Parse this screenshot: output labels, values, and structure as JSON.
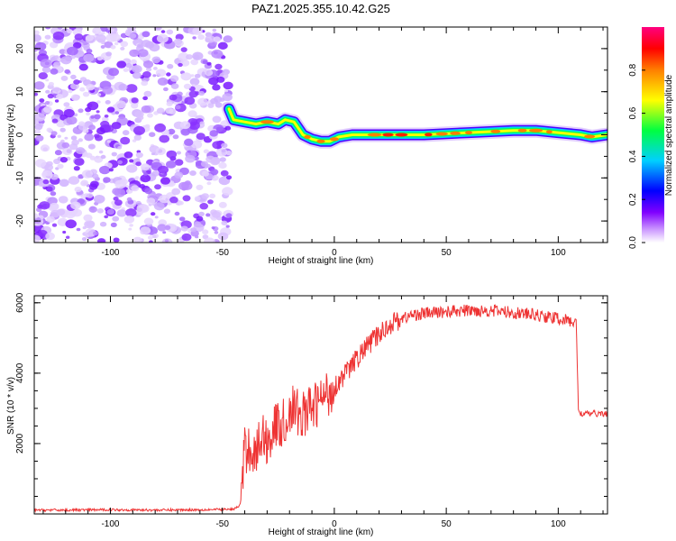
{
  "title": "PAZ1.2025.355.10.42.G25",
  "chart_data": [
    {
      "type": "heatmap",
      "name": "spectrogram",
      "xlabel": "Height of straight line (km)",
      "ylabel": "Frequency (Hz)",
      "xlim": [
        -134,
        122
      ],
      "ylim": [
        -25,
        25
      ],
      "xticks": [
        -100,
        -50,
        0,
        50,
        100
      ],
      "yticks": [
        -20,
        -10,
        0,
        10,
        20
      ],
      "noise_region_x": [
        -134,
        -47
      ],
      "ridge": {
        "x": [
          -47,
          -45,
          -40,
          -35,
          -30,
          -25,
          -22,
          -18,
          -14,
          -10,
          -6,
          -2,
          2,
          8,
          20,
          40,
          60,
          80,
          90,
          100,
          110,
          115,
          122
        ],
        "freq": [
          6,
          3.5,
          3,
          2.5,
          3,
          2.5,
          3.5,
          3,
          0,
          -1,
          -1.5,
          -1.5,
          -0.5,
          0,
          0,
          0,
          0.5,
          1,
          1,
          0.5,
          0,
          -0.5,
          0
        ]
      },
      "colorbar": {
        "label": "Normalized spectral amplitude",
        "range": [
          0,
          1
        ],
        "ticks": [
          0.0,
          0.2,
          0.4,
          0.6,
          0.8
        ],
        "tick_labels": [
          "0.0",
          "0.2",
          "0.4",
          "0.6",
          "0.8"
        ],
        "colors": [
          "#ffffff",
          "#cc99ff",
          "#8000ff",
          "#0000ff",
          "#00d0ff",
          "#00ff40",
          "#ffff00",
          "#ff8000",
          "#ff0000",
          "#ff0080"
        ]
      }
    },
    {
      "type": "line",
      "name": "snr",
      "xlabel": "Height of straight line (km)",
      "ylabel": "SNR (10 * v/v)",
      "xlim": [
        -134,
        122
      ],
      "ylim": [
        0,
        6200
      ],
      "xticks": [
        -100,
        -50,
        0,
        50,
        100
      ],
      "yticks": [
        2000,
        4000,
        6000
      ],
      "color": "#ee3333",
      "series": [
        {
          "name": "SNR",
          "x": [
            -134,
            -120,
            -100,
            -80,
            -60,
            -45,
            -42,
            -40,
            -38,
            -35,
            -32,
            -30,
            -27,
            -25,
            -22,
            -19,
            -15,
            -10,
            -5,
            0,
            5,
            10,
            15,
            20,
            25,
            30,
            35,
            40,
            45,
            50,
            60,
            70,
            80,
            90,
            100,
            107,
            108,
            109,
            110,
            115,
            122
          ],
          "y": [
            110,
            110,
            120,
            110,
            120,
            130,
            250,
            1800,
            1900,
            1700,
            2300,
            2000,
            2500,
            2500,
            2600,
            3000,
            2800,
            3000,
            3300,
            3600,
            4000,
            4400,
            4800,
            5100,
            5400,
            5550,
            5650,
            5700,
            5720,
            5750,
            5780,
            5780,
            5720,
            5650,
            5550,
            5450,
            5450,
            3000,
            2850,
            2850,
            2850
          ]
        }
      ]
    }
  ]
}
